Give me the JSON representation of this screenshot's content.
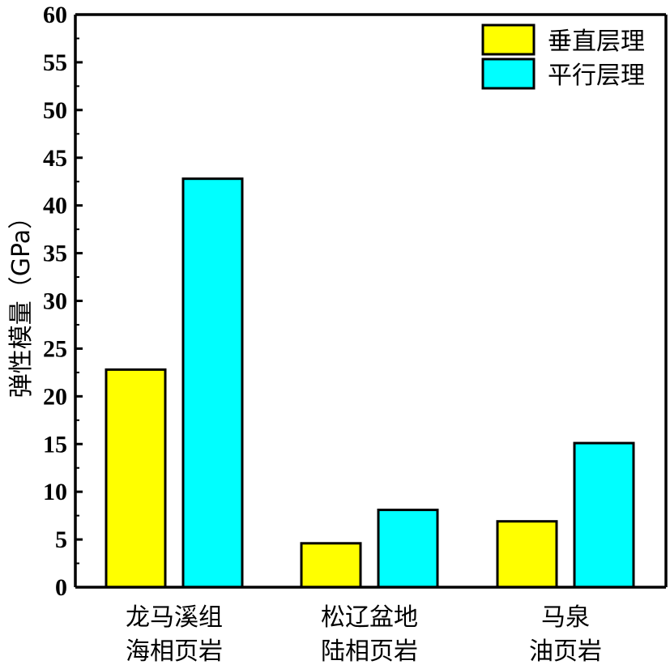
{
  "chart_data": {
    "type": "bar",
    "ylabel": "弹性模量（GPa）",
    "ylim": [
      0,
      60
    ],
    "yticks": [
      0,
      5,
      10,
      15,
      20,
      25,
      30,
      35,
      40,
      45,
      50,
      55,
      60
    ],
    "categories": [
      [
        "龙马溪组",
        "海相页岩"
      ],
      [
        "松辽盆地",
        "陆相页岩"
      ],
      [
        "马泉",
        "油页岩"
      ]
    ],
    "series": [
      {
        "name": "垂直层理",
        "color": "#ffff00",
        "values": [
          22.8,
          4.6,
          6.9
        ]
      },
      {
        "name": "平行层理",
        "color": "#00ffff",
        "values": [
          42.8,
          8.1,
          15.1
        ]
      }
    ],
    "legend_position": "top-right",
    "grid": false
  }
}
